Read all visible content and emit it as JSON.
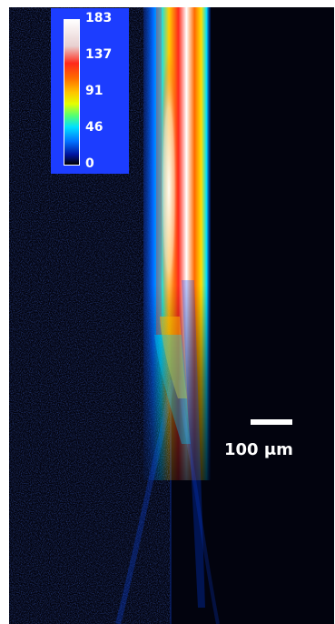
{
  "colorbar": {
    "max_label": "183",
    "tick_137": "137",
    "tick_91": "91",
    "tick_46": "46",
    "min_label": "0",
    "panel_color": "#1c3dff"
  },
  "scale_bar": {
    "label": "100 μm"
  },
  "colors": {
    "background": "#02030e",
    "noise": "#0a2a8a",
    "hot": "#ffffff",
    "red": "#ff2a1a",
    "yellow": "#ffd000",
    "cyan": "#00e0ff",
    "blue": "#0044ff"
  }
}
